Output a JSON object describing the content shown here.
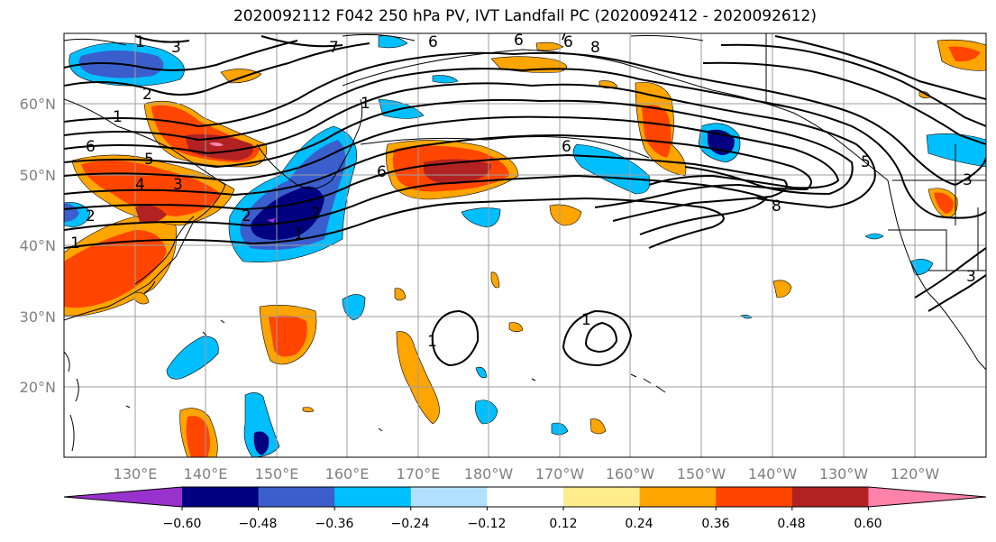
{
  "title": "2020092112 F042 250 hPa PV, IVT Landfall PC (2020092412 - 2020092612)",
  "lon_labels": [
    "130°E",
    "140°E",
    "150°E",
    "160°E",
    "170°E",
    "180°W",
    "170°W",
    "160°W",
    "150°W",
    "140°W",
    "130°W",
    "120°W"
  ],
  "lat_labels": [
    "60°N",
    "50°N",
    "40°N",
    "30°N",
    "20°N"
  ],
  "colorbar": {
    "tick_labels": [
      "−0.60",
      "−0.48",
      "−0.36",
      "−0.24",
      "−0.12",
      "0.12",
      "0.24",
      "0.36",
      "0.48",
      "0.60"
    ],
    "colors": [
      "#9932CC",
      "#000080",
      "#3A5FCD",
      "#00BFFF",
      "#B0E2FF",
      "#FFFFFF",
      "#FFEC8B",
      "#FFA500",
      "#FF4500",
      "#B22222",
      "#FF82AB"
    ]
  },
  "contour_labels": [
    "1",
    "3",
    "7",
    "6",
    "6",
    "6",
    "8",
    "7",
    "2",
    "1",
    "1",
    "6",
    "5",
    "4",
    "3",
    "2",
    "1",
    "6",
    "2",
    "2",
    "1",
    "6",
    "8",
    "5",
    "3",
    "3",
    "1",
    "1"
  ]
}
